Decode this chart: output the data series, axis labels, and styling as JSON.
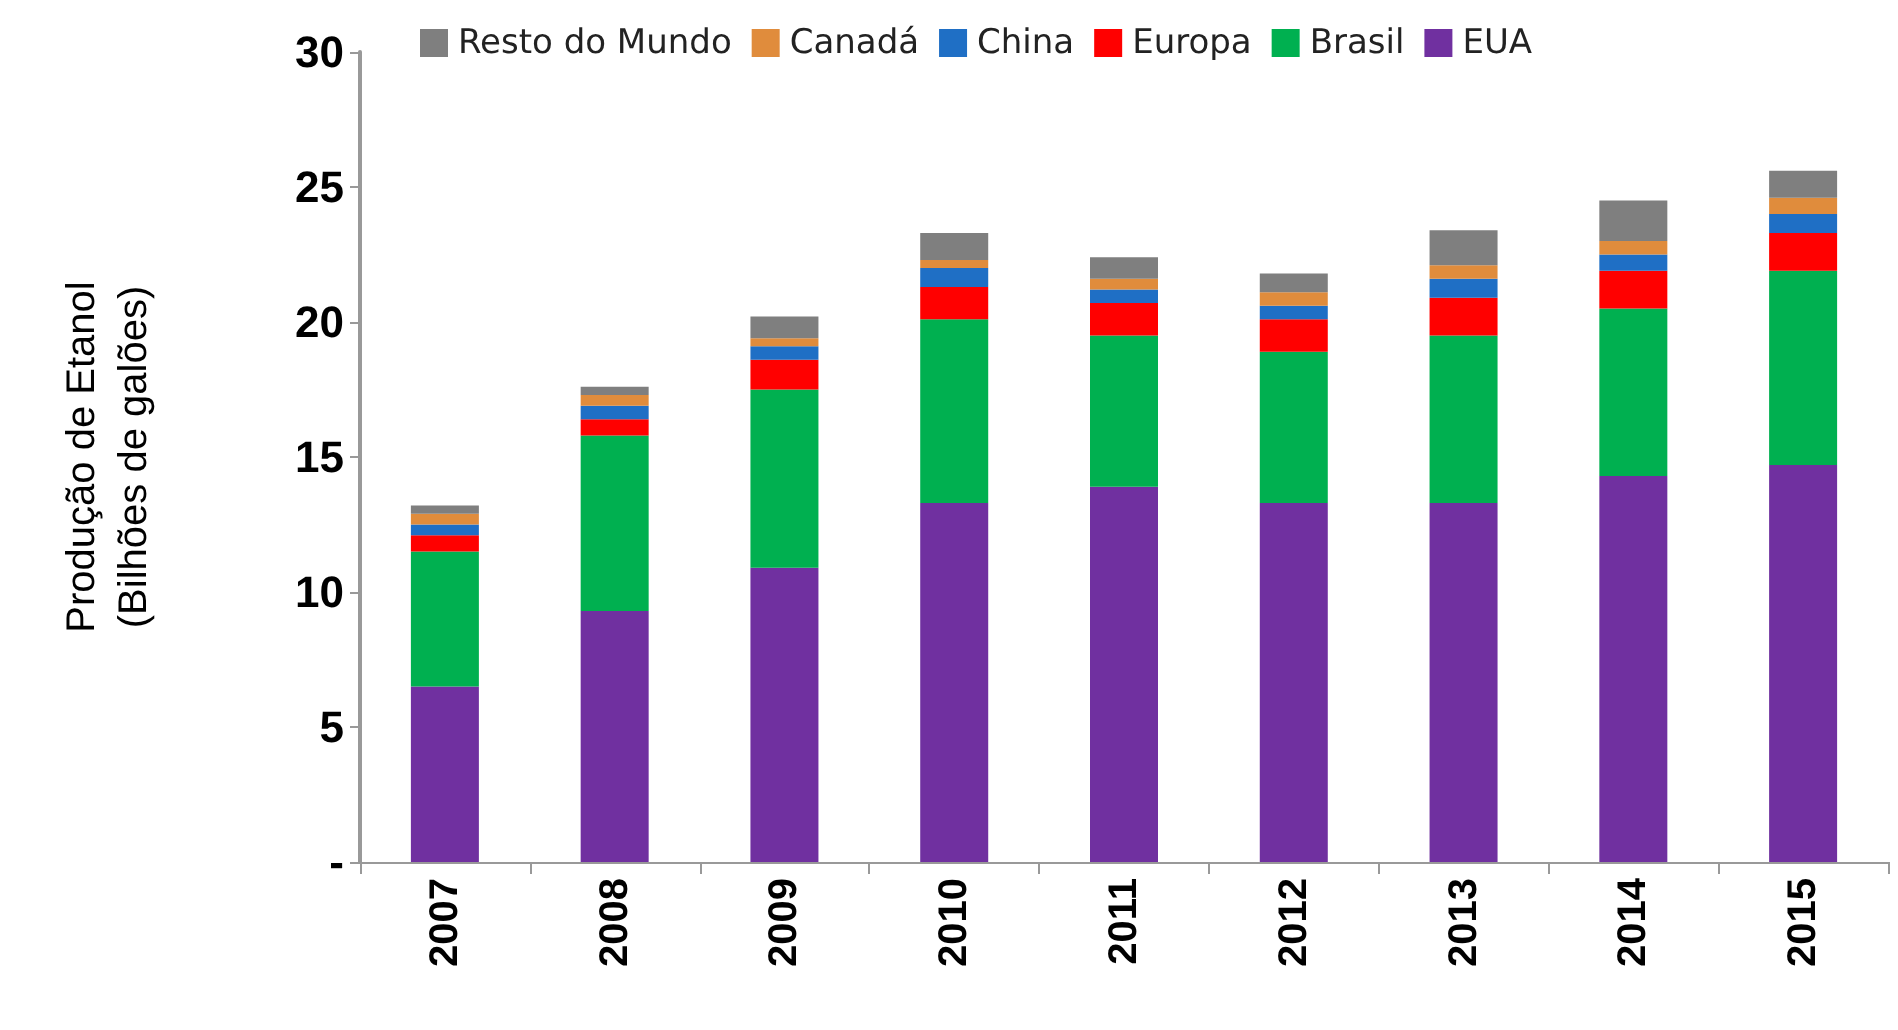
{
  "chart_data": {
    "type": "bar",
    "stacked": true,
    "ylabel": "Produção de Etanol\n(Bilhões de galões)",
    "categories": [
      "2007",
      "2008",
      "2009",
      "2010",
      "2011",
      "2012",
      "2013",
      "2014",
      "2015"
    ],
    "series": [
      {
        "name": "EUA",
        "color": "#7030a0",
        "values": [
          6.5,
          9.3,
          10.9,
          13.3,
          13.9,
          13.3,
          13.3,
          14.3,
          14.7
        ]
      },
      {
        "name": "Brasil",
        "color": "#00b050",
        "values": [
          5.0,
          6.5,
          6.6,
          6.8,
          5.6,
          5.6,
          6.2,
          6.2,
          7.2
        ]
      },
      {
        "name": "Europa",
        "color": "#ff0000",
        "values": [
          0.6,
          0.6,
          1.1,
          1.2,
          1.2,
          1.2,
          1.4,
          1.4,
          1.4
        ]
      },
      {
        "name": "China",
        "color": "#1f6fc5",
        "values": [
          0.4,
          0.5,
          0.5,
          0.7,
          0.5,
          0.5,
          0.7,
          0.6,
          0.7
        ]
      },
      {
        "name": "Canadá",
        "color": "#e08c3c",
        "values": [
          0.4,
          0.4,
          0.3,
          0.3,
          0.4,
          0.5,
          0.5,
          0.5,
          0.6
        ]
      },
      {
        "name": "Resto do Mundo",
        "color": "#7f7f7f",
        "values": [
          0.3,
          0.3,
          0.8,
          1.0,
          0.8,
          0.7,
          1.3,
          1.5,
          1.0
        ]
      }
    ],
    "ylim": [
      0,
      30
    ],
    "yticks": [
      {
        "value": 0,
        "label": "-"
      },
      5,
      10,
      15,
      20,
      25,
      30
    ],
    "grid": false,
    "legend": "top"
  }
}
